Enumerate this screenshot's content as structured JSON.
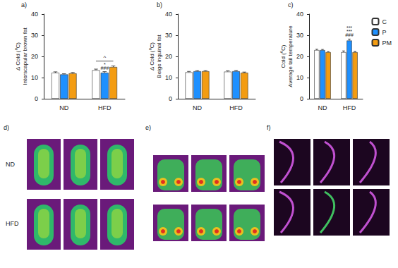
{
  "chart_data": [
    {
      "type": "bar",
      "title": "a)",
      "ylabel": "Δ Cold (⁰C)\nInterscapular brown fat",
      "categories": [
        "ND",
        "HFD"
      ],
      "series": [
        {
          "name": "C",
          "color": "#ffffff",
          "values": [
            12.3,
            13.5
          ],
          "errors": [
            0.4,
            0.5
          ]
        },
        {
          "name": "P",
          "color": "#1e90ff",
          "values": [
            11.5,
            12.3
          ],
          "errors": [
            0.3,
            0.5
          ]
        },
        {
          "name": "PM",
          "color": "#f39c12",
          "values": [
            12.0,
            15.0
          ],
          "errors": [
            0.4,
            0.5
          ]
        }
      ],
      "ylim": [
        0,
        40
      ],
      "yticks": [
        0,
        10,
        20,
        30,
        40
      ],
      "grid": false,
      "annotations": [
        {
          "category": "HFD",
          "series": "P",
          "text": [
            "*",
            "###"
          ]
        }
      ],
      "brackets": [
        {
          "category": "HFD",
          "from": "C",
          "to": "PM",
          "text": "^"
        }
      ]
    },
    {
      "type": "bar",
      "title": "b)",
      "ylabel": "Δ Cold (⁰C)\nBeige inguinal fat",
      "categories": [
        "ND",
        "HFD"
      ],
      "series": [
        {
          "name": "C",
          "color": "#ffffff",
          "values": [
            12.5,
            12.8
          ],
          "errors": [
            0.4,
            0.4
          ]
        },
        {
          "name": "P",
          "color": "#1e90ff",
          "values": [
            13.0,
            13.0
          ],
          "errors": [
            0.3,
            0.4
          ]
        },
        {
          "name": "PM",
          "color": "#f39c12",
          "values": [
            13.0,
            12.3
          ],
          "errors": [
            0.3,
            0.3
          ]
        }
      ],
      "ylim": [
        0,
        40
      ],
      "yticks": [
        0,
        10,
        20,
        30,
        40
      ],
      "grid": false
    },
    {
      "type": "bar",
      "title": "c)",
      "ylabel": "Cold (⁰C)\nAverage tail temperature",
      "categories": [
        "ND",
        "HFD"
      ],
      "series": [
        {
          "name": "C",
          "color": "#ffffff",
          "values": [
            23.0,
            22.0
          ],
          "errors": [
            0.4,
            0.6
          ]
        },
        {
          "name": "P",
          "color": "#1e90ff",
          "values": [
            23.0,
            27.5
          ],
          "errors": [
            0.3,
            0.7
          ]
        },
        {
          "name": "PM",
          "color": "#f39c12",
          "values": [
            22.0,
            22.0
          ],
          "errors": [
            0.3,
            0.4
          ]
        }
      ],
      "ylim": [
        0,
        40
      ],
      "yticks": [
        0,
        10,
        20,
        30,
        40
      ],
      "grid": false,
      "legend": "right",
      "annotations": [
        {
          "category": "HFD",
          "series": "P",
          "text": [
            "***",
            "***",
            "###"
          ]
        }
      ]
    }
  ],
  "images": {
    "panels": [
      "d)",
      "e)",
      "f)"
    ],
    "rows": [
      "ND",
      "HFD"
    ]
  }
}
